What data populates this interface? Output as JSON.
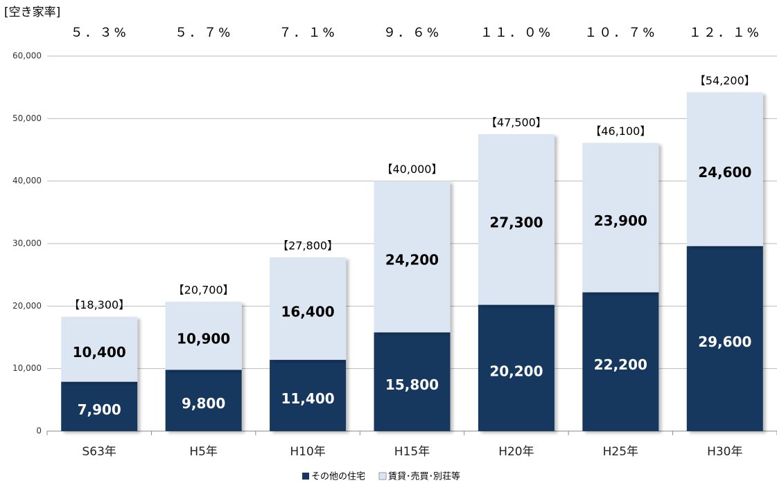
{
  "chart_data": {
    "type": "stacked_bar",
    "rate_title": "[空き家率]",
    "categories": [
      "S63年",
      "H5年",
      "H10年",
      "H15年",
      "H20年",
      "H25年",
      "H30年"
    ],
    "series": [
      {
        "name": "その他の住宅",
        "color": "#17375e",
        "values": [
          7900,
          9800,
          11400,
          15800,
          20200,
          22200,
          29600
        ],
        "value_labels": [
          "7,900",
          "9,800",
          "11,400",
          "15,800",
          "20,200",
          "22,200",
          "29,600"
        ]
      },
      {
        "name": "賃貸･売買･別荘等",
        "color": "#dce6f2",
        "values": [
          10400,
          10900,
          16400,
          24200,
          27300,
          23900,
          24600
        ],
        "value_labels": [
          "10,400",
          "10,900",
          "16,400",
          "24,200",
          "27,300",
          "23,900",
          "24,600"
        ]
      }
    ],
    "totals": {
      "values": [
        18300,
        20700,
        27800,
        40000,
        47500,
        46100,
        54200
      ],
      "value_labels": [
        "【18,300】",
        "【20,700】",
        "【27,800】",
        "【40,000】",
        "【47,500】",
        "【46,100】",
        "【54,200】"
      ]
    },
    "rates": {
      "values": [
        5.3,
        5.7,
        7.1,
        9.6,
        11.0,
        10.7,
        12.1
      ],
      "value_labels": [
        "５．３%",
        "５．７%",
        "７．１%",
        "９．６%",
        "１１．０%",
        "１０．７%",
        "１２．１%"
      ]
    },
    "ylim": [
      0,
      60000
    ],
    "yticks": [
      0,
      {
        "value": 10000,
        "label": "10,000"
      },
      {
        "value": 20000,
        "label": "20,000"
      },
      {
        "value": 30000,
        "label": "30,000"
      },
      {
        "value": 40000,
        "label": "40,000"
      },
      {
        "value": 50000,
        "label": "50,000"
      },
      {
        "value": 60000,
        "label": "60,000"
      }
    ],
    "grid": true
  }
}
